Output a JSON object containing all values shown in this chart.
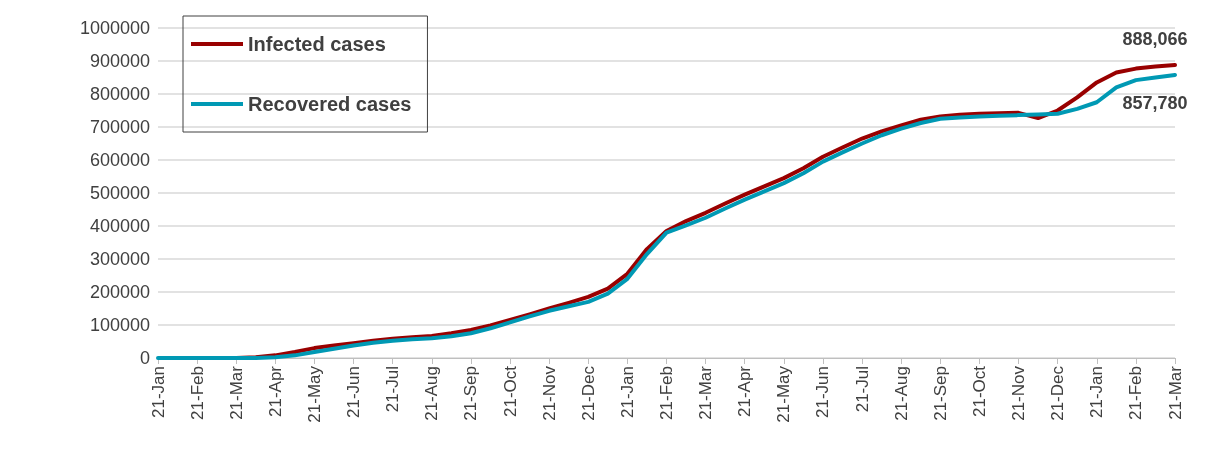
{
  "chart_data": {
    "type": "line",
    "categories": [
      "21-Jan",
      null,
      "21-Feb",
      null,
      "21-Mar",
      null,
      "21-Apr",
      null,
      "21-May",
      null,
      "21-Jun",
      null,
      "21-Jul",
      null,
      "21-Aug",
      null,
      "21-Sep",
      null,
      "21-Oct",
      null,
      "21-Nov",
      null,
      "21-Dec",
      null,
      "21-Jan",
      null,
      "21-Feb",
      null,
      "21-Mar",
      null,
      "21-Apr",
      null,
      "21-May",
      null,
      "21-Jun",
      null,
      "21-Jul",
      null,
      "21-Aug",
      null,
      "21-Sep",
      null,
      "21-Oct",
      null,
      "21-Nov",
      null,
      "21-Dec",
      null,
      "21-Jan",
      null,
      "21-Feb",
      null,
      "21-Mar"
    ],
    "ylim": [
      0,
      1000000
    ],
    "yticks": [
      0,
      100000,
      200000,
      300000,
      400000,
      500000,
      600000,
      700000,
      800000,
      900000,
      1000000
    ],
    "grid": "y",
    "legend": "top left",
    "series": [
      {
        "name": "Infected cases",
        "color": "#990000",
        "values": [
          null,
          null,
          null,
          0,
          0,
          2000,
          8000,
          18000,
          30000,
          38000,
          45000,
          52000,
          58000,
          63000,
          67000,
          75000,
          85000,
          99000,
          115000,
          132000,
          150000,
          167000,
          185000,
          210000,
          255000,
          330000,
          385000,
          415000,
          440000,
          468000,
          495000,
          520000,
          545000,
          575000,
          610000,
          638000,
          665000,
          687000,
          705000,
          722000,
          732000,
          737000,
          740000,
          742000,
          743000,
          727000,
          750000,
          790000,
          835000,
          865000,
          877000,
          883000,
          888066
        ],
        "value_labels": [
          null,
          null,
          null,
          null,
          null,
          null,
          null,
          null,
          null,
          null,
          null,
          null,
          null,
          null,
          null,
          null,
          null,
          null,
          null,
          null,
          null,
          null,
          null,
          null,
          null,
          null,
          null,
          null,
          null,
          null,
          null,
          null,
          null,
          null,
          null,
          null,
          null,
          null,
          null,
          null,
          null,
          null,
          null,
          null,
          null,
          null,
          null,
          null,
          null,
          null,
          null,
          null,
          "888,066"
        ]
      },
      {
        "name": "Recovered cases",
        "color": "#0099b4",
        "values": [
          0,
          0,
          0,
          0,
          0,
          0,
          2000,
          8000,
          18000,
          28000,
          38000,
          46000,
          52000,
          57000,
          60000,
          66000,
          75000,
          90000,
          108000,
          126000,
          143000,
          157000,
          170000,
          195000,
          240000,
          315000,
          380000,
          402000,
          425000,
          453000,
          480000,
          505000,
          530000,
          560000,
          595000,
          623000,
          650000,
          675000,
          695000,
          712000,
          725000,
          729000,
          732000,
          734000,
          736000,
          738000,
          740000,
          755000,
          775000,
          820000,
          842000,
          850000,
          857780
        ],
        "value_labels": [
          null,
          null,
          null,
          null,
          null,
          null,
          null,
          null,
          null,
          null,
          null,
          null,
          null,
          null,
          null,
          null,
          null,
          null,
          null,
          null,
          null,
          null,
          null,
          null,
          null,
          null,
          null,
          null,
          null,
          null,
          null,
          null,
          null,
          null,
          null,
          null,
          null,
          null,
          null,
          null,
          null,
          null,
          null,
          null,
          null,
          null,
          null,
          null,
          null,
          null,
          null,
          null,
          "857,780"
        ]
      }
    ]
  }
}
